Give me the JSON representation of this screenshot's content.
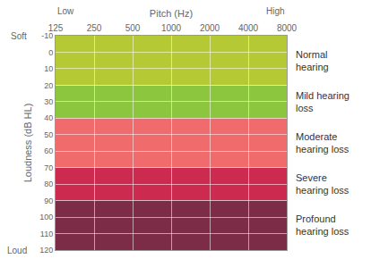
{
  "chart_data": {
    "type": "bands",
    "x_label": "Pitch (Hz)",
    "y_label": "Loudness (dB HL)",
    "x_end_labels": [
      "Low",
      "High"
    ],
    "y_end_labels": [
      "Soft",
      "Loud"
    ],
    "log": "x",
    "grid": true,
    "xlim": [
      125,
      8000
    ],
    "xticks": [
      125,
      250,
      500,
      1000,
      2000,
      4000,
      8000
    ],
    "ylim": [
      -10,
      120
    ],
    "yticks": [
      -10,
      0,
      10,
      20,
      30,
      40,
      50,
      60,
      70,
      80,
      90,
      100,
      110,
      120
    ],
    "bands": [
      {
        "name": "Normal hearing",
        "from": -10,
        "to": 20,
        "color": "#b5c935"
      },
      {
        "name": "Mild hearing loss",
        "from": 20,
        "to": 40,
        "color": "#8cc63f"
      },
      {
        "name": "Moderate hearing loss",
        "from": 40,
        "to": 70,
        "color": "#f06b6b"
      },
      {
        "name": "Severe hearing loss",
        "from": 70,
        "to": 90,
        "color": "#cc2a4f"
      },
      {
        "name": "Profound hearing loss",
        "from": 90,
        "to": 120,
        "color": "#7c2c46"
      }
    ]
  }
}
